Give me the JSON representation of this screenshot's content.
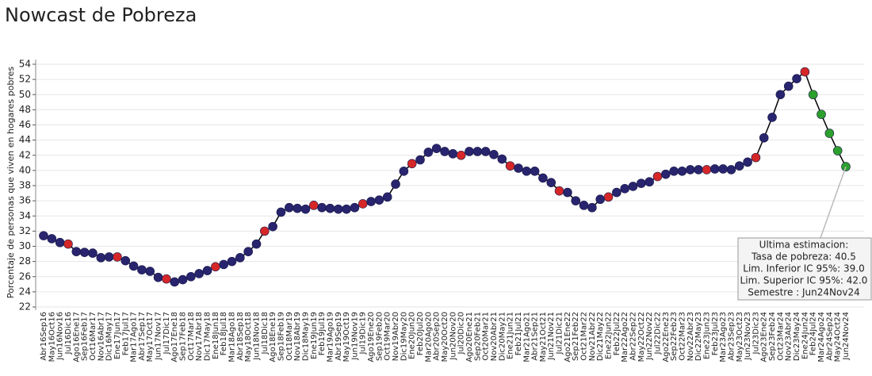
{
  "chart_data": {
    "type": "line",
    "title": "Nowcast de Pobreza",
    "y_label": "Porcentaje de personas que viven en hogares pobres",
    "categories": [
      "Abr16Sep16",
      "May16Oct16",
      "Jun16Nov16",
      "Jul16Dic16",
      "Ago16Ene17",
      "Sep16Feb17",
      "Oct16Mar17",
      "Nov16Abr17",
      "Dic16May17",
      "Ene17Jun17",
      "Feb17Jul17",
      "Mar17Ago17",
      "Abr17Sep17",
      "May17Oct17",
      "Jun17Nov17",
      "Jul17Dic17",
      "Ago17Ene18",
      "Sep17Feb18",
      "Oct17Mar18",
      "Nov17Abr18",
      "Dic17May18",
      "Ene18Jun18",
      "Feb18Jul18",
      "Mar18Ago18",
      "Abr18Sep18",
      "May18Oct18",
      "Jun18Nov18",
      "Jul18Dic18",
      "Ago18Ene19",
      "Sep18Feb19",
      "Oct18Mar19",
      "Nov18Abr19",
      "Dic18May19",
      "Ene19Jun19",
      "Feb19Jul19",
      "Mar19Ago19",
      "Abr19Sep19",
      "May19Oct19",
      "Jun19Nov19",
      "Jul19Dic19",
      "Ago19Ene20",
      "Sep19Feb20",
      "Oct19Mar20",
      "Nov19Abr20",
      "Dic19May20",
      "Ene20Jun20",
      "Feb20Jul20",
      "Mar20Ago20",
      "Abr20Sep20",
      "May20Oct20",
      "Jun20Nov20",
      "Jul20Dic20",
      "Ago20Ene21",
      "Sep20Feb21",
      "Oct20Mar21",
      "Nov20Abr21",
      "Dic20May21",
      "Ene21Jun21",
      "Feb21Jul21",
      "Mar21Ago21",
      "Abr21Sep21",
      "May21Oct21",
      "Jun21Nov21",
      "Jul21Dic21",
      "Ago21Ene22",
      "Sep21Feb22",
      "Oct21Mar22",
      "Nov21Abr22",
      "Dic21May22",
      "Ene22Jun22",
      "Feb22Jul22",
      "Mar22Ago22",
      "Abr22Sep22",
      "May22Oct22",
      "Jun22Nov22",
      "Jul22Dic22",
      "Ago22Ene23",
      "Sep22Feb23",
      "Oct22Mar23",
      "Nov22Abr23",
      "Dic22May23",
      "Ene23Jun23",
      "Feb23Jul23",
      "Mar23Ago23",
      "Abr23Sep23",
      "May23Oct23",
      "Jun23Nov23",
      "Jul23Dic23",
      "Ago23Ene24",
      "Sep23Feb24",
      "Oct23Mar24",
      "Nov23Abr24",
      "Dic23May24",
      "Ene24Jun24",
      "Feb24Jul24",
      "Mar24Ago24",
      "Abr24Sep24",
      "May24Oct24",
      "Jun24Nov24"
    ],
    "series": [
      {
        "name": "Tasa de pobreza",
        "color": "#000000",
        "values": [
          31.4,
          31.0,
          30.5,
          30.3,
          29.3,
          29.2,
          29.1,
          28.5,
          28.6,
          28.6,
          28.1,
          27.4,
          26.9,
          26.7,
          25.9,
          25.7,
          25.3,
          25.6,
          26.0,
          26.4,
          26.8,
          27.3,
          27.6,
          28.0,
          28.5,
          29.3,
          30.3,
          32.0,
          32.6,
          34.5,
          35.1,
          35.0,
          34.9,
          35.4,
          35.1,
          35.0,
          34.9,
          34.9,
          35.1,
          35.6,
          35.9,
          36.1,
          36.5,
          38.2,
          39.9,
          40.9,
          41.4,
          42.4,
          42.9,
          42.5,
          42.2,
          42.0,
          42.5,
          42.5,
          42.5,
          42.1,
          41.5,
          40.6,
          40.3,
          39.9,
          39.9,
          39.0,
          38.4,
          37.3,
          37.1,
          36.0,
          35.4,
          35.1,
          36.2,
          36.5,
          37.1,
          37.6,
          37.9,
          38.3,
          38.5,
          39.2,
          39.5,
          39.9,
          39.9,
          40.1,
          40.1,
          40.1,
          40.2,
          40.2,
          40.1,
          40.6,
          41.1,
          41.7,
          44.3,
          47.0,
          50.0,
          51.1,
          52.1,
          53.0,
          50.0,
          47.4,
          44.9,
          42.6,
          40.5
        ],
        "point_colors": [
          "#28246e",
          "#28246e",
          "#28246e",
          "#d62728",
          "#28246e",
          "#28246e",
          "#28246e",
          "#28246e",
          "#28246e",
          "#d62728",
          "#28246e",
          "#28246e",
          "#28246e",
          "#28246e",
          "#28246e",
          "#d62728",
          "#28246e",
          "#28246e",
          "#28246e",
          "#28246e",
          "#28246e",
          "#d62728",
          "#28246e",
          "#28246e",
          "#28246e",
          "#28246e",
          "#28246e",
          "#d62728",
          "#28246e",
          "#28246e",
          "#28246e",
          "#28246e",
          "#28246e",
          "#d62728",
          "#28246e",
          "#28246e",
          "#28246e",
          "#28246e",
          "#28246e",
          "#d62728",
          "#28246e",
          "#28246e",
          "#28246e",
          "#28246e",
          "#28246e",
          "#d62728",
          "#28246e",
          "#28246e",
          "#28246e",
          "#28246e",
          "#28246e",
          "#d62728",
          "#28246e",
          "#28246e",
          "#28246e",
          "#28246e",
          "#28246e",
          "#d62728",
          "#28246e",
          "#28246e",
          "#28246e",
          "#28246e",
          "#28246e",
          "#d62728",
          "#28246e",
          "#28246e",
          "#28246e",
          "#28246e",
          "#28246e",
          "#d62728",
          "#28246e",
          "#28246e",
          "#28246e",
          "#28246e",
          "#28246e",
          "#d62728",
          "#28246e",
          "#28246e",
          "#28246e",
          "#28246e",
          "#28246e",
          "#d62728",
          "#28246e",
          "#28246e",
          "#28246e",
          "#28246e",
          "#28246e",
          "#d62728",
          "#28246e",
          "#28246e",
          "#28246e",
          "#28246e",
          "#28246e",
          "#d62728",
          "#2ca02c",
          "#2ca02c",
          "#2ca02c",
          "#2ca02c",
          "#2ca02c"
        ]
      }
    ],
    "ylim": [
      22,
      54
    ],
    "yticks": [
      22,
      24,
      26,
      28,
      30,
      32,
      34,
      36,
      38,
      40,
      42,
      44,
      46,
      48,
      50,
      52,
      54
    ],
    "grid": true,
    "tooltip": [
      "Ultima estimacion:",
      "Tasa de pobreza:  40.5",
      "Lim. Inferior IC 95%:  39.0",
      "Lim. Superior IC 95%:  42.0",
      "Semestre : Jun24Nov24"
    ]
  }
}
